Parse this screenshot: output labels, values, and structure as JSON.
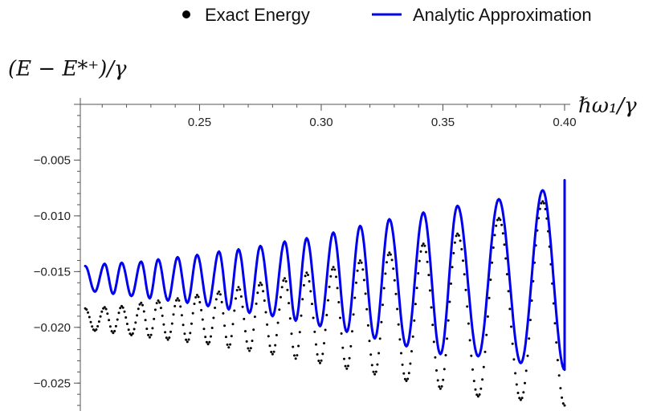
{
  "chart_data": {
    "type": "line",
    "title": "",
    "xlabel": "ℏω₁/γ",
    "ylabel": "(E − E*⁺)/γ",
    "xlim": [
      0.201,
      0.401
    ],
    "ylim": [
      -0.0275,
      0.0
    ],
    "x_axis_crossing_y": 0.0,
    "y_axis_crossing_x": 0.201,
    "x_ticks": [
      {
        "value": 0.25,
        "label": "0.25"
      },
      {
        "value": 0.3,
        "label": "0.30"
      },
      {
        "value": 0.35,
        "label": "0.35"
      },
      {
        "value": 0.4,
        "label": "0.40"
      }
    ],
    "y_ticks": [
      {
        "value": -0.005,
        "label": "−0.005"
      },
      {
        "value": -0.01,
        "label": "−0.010"
      },
      {
        "value": -0.015,
        "label": "−0.015"
      },
      {
        "value": -0.02,
        "label": "−0.020"
      },
      {
        "value": -0.025,
        "label": "−0.025"
      }
    ],
    "grid": false,
    "legend_position": "top-center",
    "series": [
      {
        "name": "Exact Energy",
        "style": "dotted",
        "color": "#000000",
        "x": [
          0.203,
          0.211,
          0.218,
          0.226,
          0.233,
          0.241,
          0.249,
          0.258,
          0.266,
          0.275,
          0.285,
          0.294,
          0.305,
          0.316,
          0.328,
          0.342,
          0.356,
          0.373,
          0.391
        ],
        "peaks": [
          -0.0183,
          -0.0182,
          -0.0181,
          -0.0178,
          -0.0176,
          -0.0174,
          -0.0171,
          -0.0168,
          -0.0164,
          -0.016,
          -0.0156,
          -0.0151,
          -0.0146,
          -0.014,
          -0.0133,
          -0.0125,
          -0.0116,
          -0.0102,
          -0.0087
        ],
        "troughs": [
          -0.0203,
          -0.0205,
          -0.0207,
          -0.0209,
          -0.0211,
          -0.0213,
          -0.0215,
          -0.0218,
          -0.0221,
          -0.0224,
          -0.0228,
          -0.0232,
          -0.0237,
          -0.0242,
          -0.0248,
          -0.0255,
          -0.0262,
          -0.0265,
          -0.027
        ],
        "end": {
          "x": 0.4,
          "y": -0.0072
        }
      },
      {
        "name": "Analytic Approximation",
        "style": "solid",
        "color": "#0000ee",
        "x": [
          0.203,
          0.211,
          0.218,
          0.226,
          0.233,
          0.241,
          0.249,
          0.258,
          0.266,
          0.275,
          0.285,
          0.294,
          0.305,
          0.316,
          0.328,
          0.342,
          0.356,
          0.373,
          0.391
        ],
        "peaks": [
          -0.0145,
          -0.0143,
          -0.0142,
          -0.0141,
          -0.0139,
          -0.0137,
          -0.0135,
          -0.0132,
          -0.013,
          -0.0127,
          -0.0123,
          -0.012,
          -0.0115,
          -0.0109,
          -0.0103,
          -0.0097,
          -0.0091,
          -0.0085,
          -0.0077
        ],
        "troughs": [
          -0.0168,
          -0.017,
          -0.0172,
          -0.0174,
          -0.0176,
          -0.0178,
          -0.0181,
          -0.0184,
          -0.0187,
          -0.019,
          -0.0194,
          -0.0199,
          -0.0204,
          -0.021,
          -0.0217,
          -0.0224,
          -0.0226,
          -0.0232,
          -0.0238
        ],
        "end": {
          "x": 0.4,
          "y": -0.0068
        }
      }
    ]
  }
}
